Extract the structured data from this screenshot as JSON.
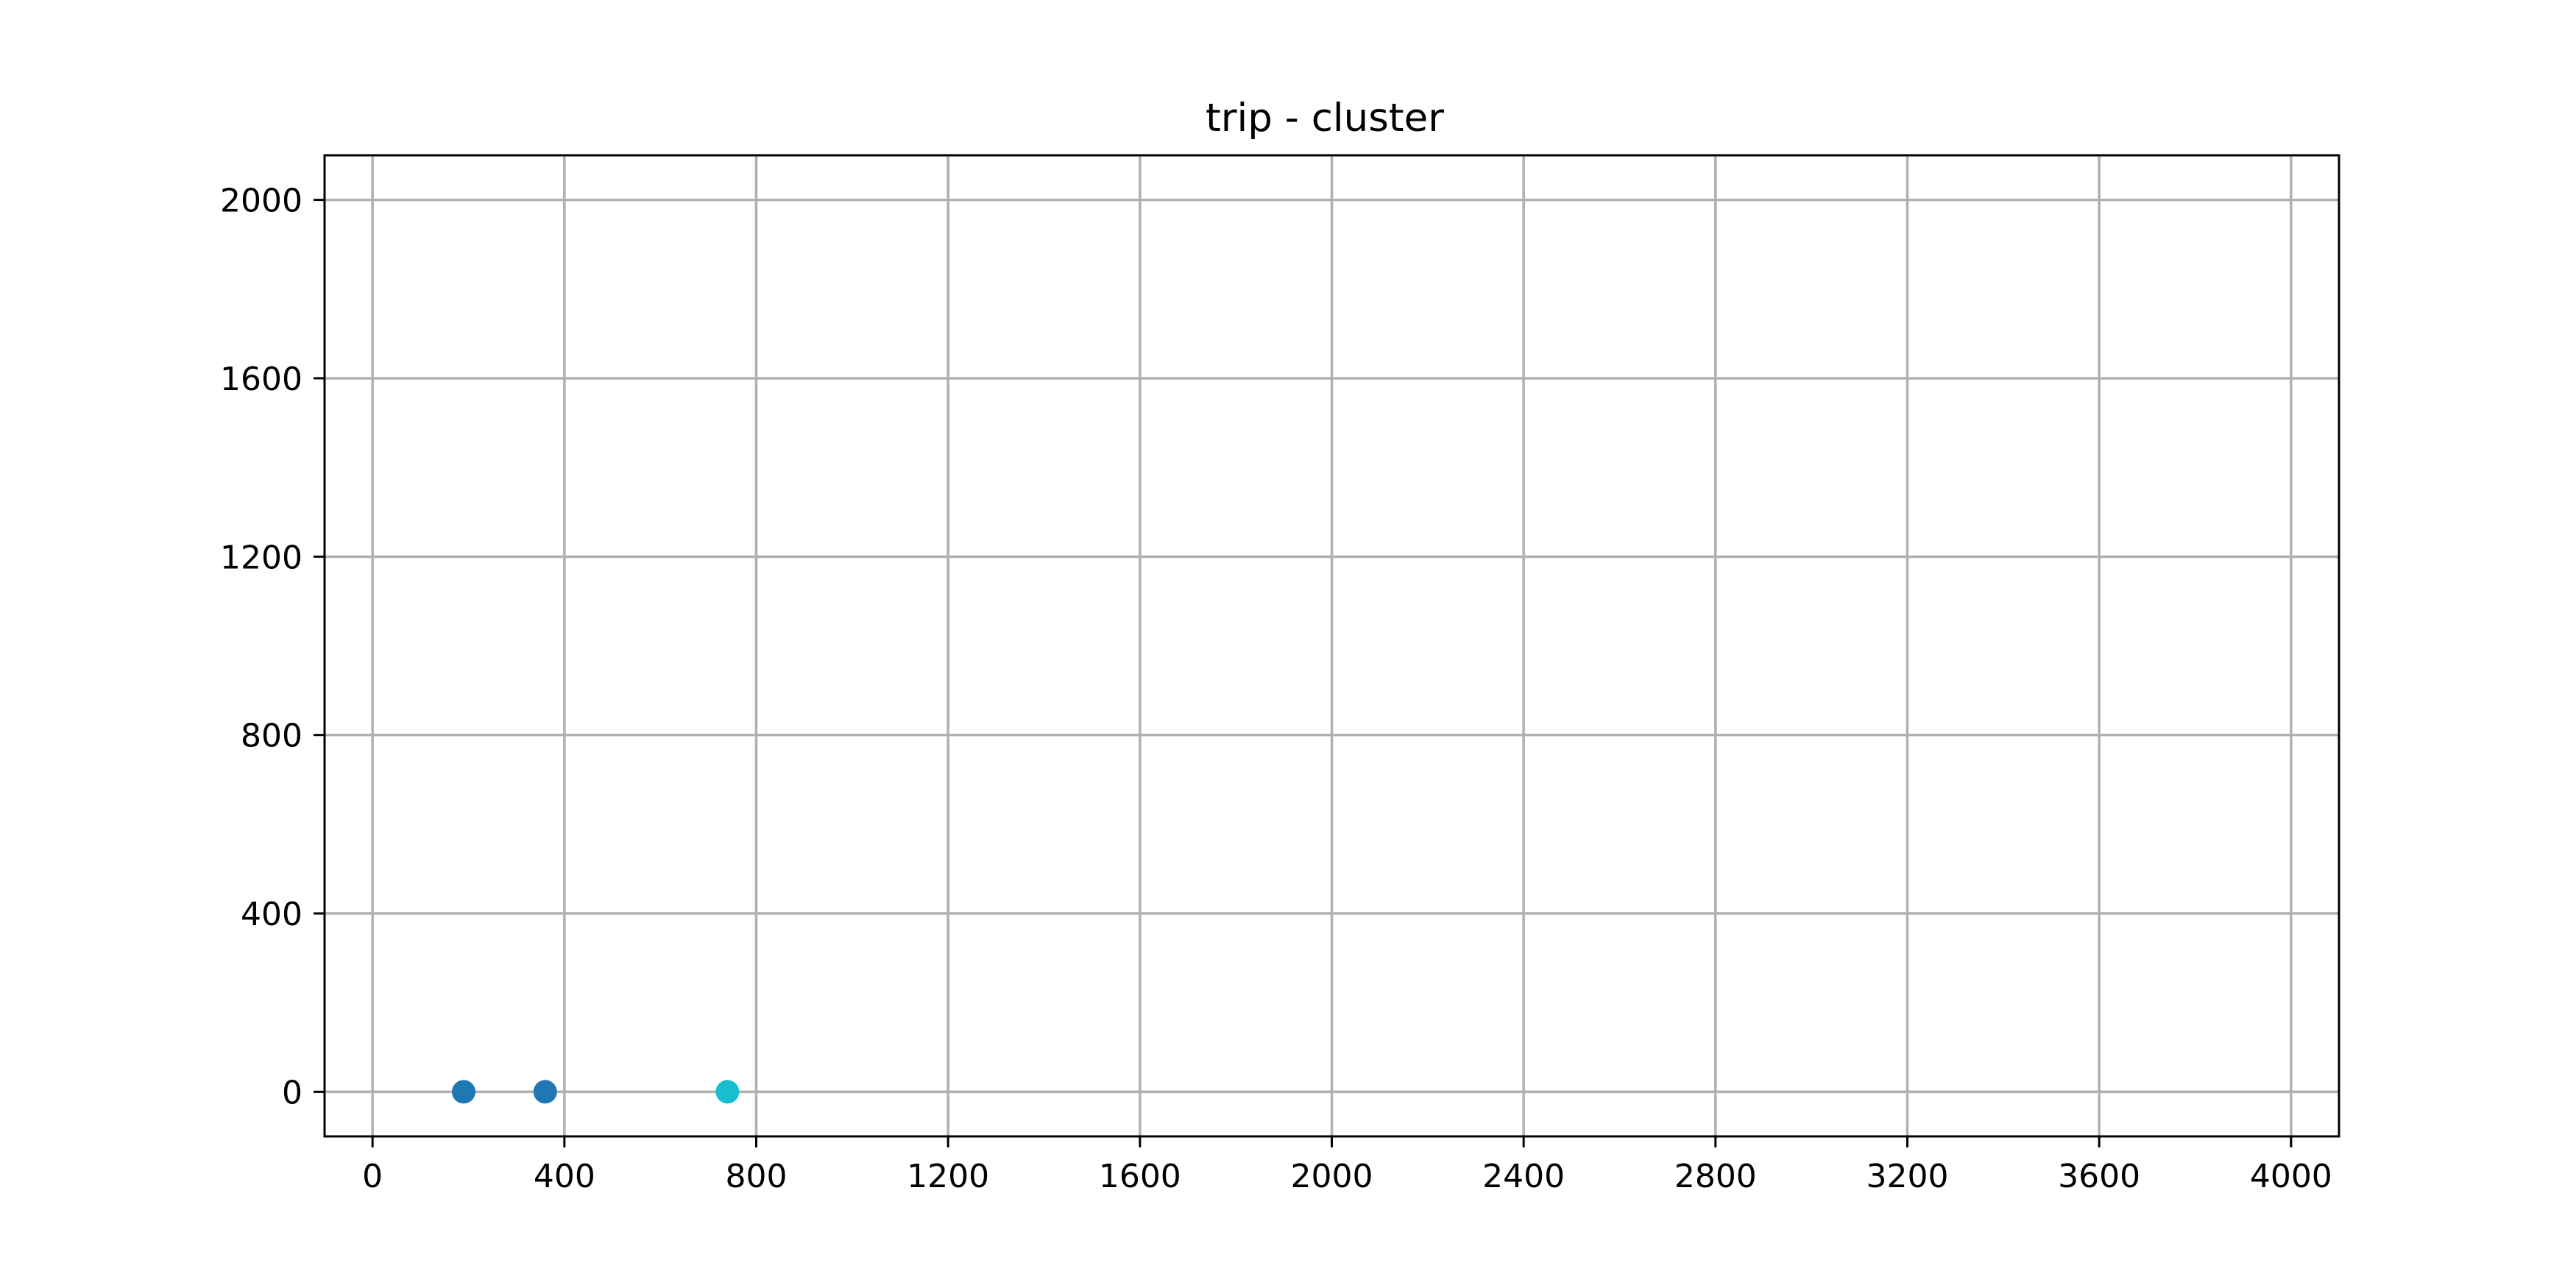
{
  "chart_data": {
    "type": "scatter",
    "title": "trip - cluster",
    "xlabel": "",
    "ylabel": "",
    "xlim": [
      -100,
      4100
    ],
    "ylim": [
      -100,
      2100
    ],
    "x_ticks": [
      0,
      400,
      800,
      1200,
      1600,
      2000,
      2400,
      2800,
      3200,
      3600,
      4000
    ],
    "x_tick_labels": [
      "0",
      "400",
      "800",
      "1200",
      "1600",
      "2000",
      "2400",
      "2800",
      "3200",
      "3600",
      "4000"
    ],
    "y_ticks": [
      0,
      400,
      800,
      1200,
      1600,
      2000
    ],
    "y_tick_labels": [
      "0",
      "400",
      "800",
      "1200",
      "1600",
      "2000"
    ],
    "grid": true,
    "legend": "none",
    "points": [
      {
        "x": 190,
        "y": 0,
        "color": "#1f77b4"
      },
      {
        "x": 360,
        "y": 0,
        "color": "#1f77b4"
      },
      {
        "x": 740,
        "y": 0,
        "color": "#17becf"
      }
    ]
  }
}
